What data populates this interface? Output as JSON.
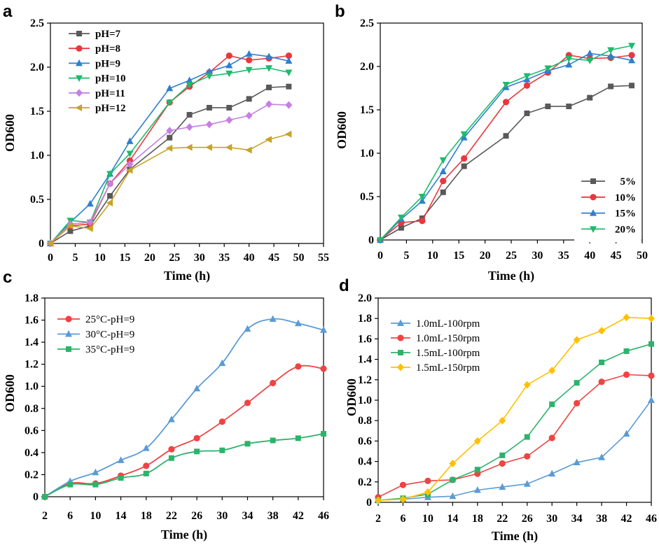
{
  "chart_data": [
    {
      "panel": "a",
      "type": "line",
      "xlabel": "Time (h)",
      "ylabel": "OD600",
      "xlim": [
        0,
        55
      ],
      "ylim": [
        0,
        2.5
      ],
      "xticks": [
        "0",
        "5",
        "10",
        "15",
        "20",
        "25",
        "30",
        "35",
        "40",
        "45",
        "50",
        "55"
      ],
      "yticks": [
        "0",
        "0.5",
        "1.0",
        "1.5",
        "2.0",
        "2.5"
      ],
      "legend_position": "top-left",
      "x": [
        0,
        4,
        8,
        12,
        16,
        24,
        28,
        32,
        36,
        40,
        44,
        48
      ],
      "series": [
        {
          "name": "pH=7",
          "color": "#595959",
          "marker": "square",
          "values": [
            0,
            0.14,
            0.2,
            0.54,
            0.84,
            1.2,
            1.46,
            1.54,
            1.54,
            1.64,
            1.77,
            1.78
          ]
        },
        {
          "name": "pH=8",
          "color": "#e8383d",
          "marker": "circle",
          "values": [
            0,
            0.2,
            0.22,
            0.68,
            0.94,
            1.6,
            1.78,
            1.94,
            2.13,
            2.08,
            2.1,
            2.13
          ]
        },
        {
          "name": "pH=9",
          "color": "#2e7fcf",
          "marker": "triangle-up",
          "values": [
            0,
            0.24,
            0.45,
            0.79,
            1.16,
            1.76,
            1.85,
            1.95,
            2.02,
            2.15,
            2.12,
            2.07
          ]
        },
        {
          "name": "pH=10",
          "color": "#1dbb6b",
          "marker": "triangle-down",
          "values": [
            0,
            0.26,
            0.24,
            0.79,
            1.02,
            1.6,
            1.8,
            1.9,
            1.93,
            1.97,
            1.99,
            1.94
          ]
        },
        {
          "name": "pH=11",
          "color": "#c77fe3",
          "marker": "diamond",
          "values": [
            0,
            0.22,
            0.24,
            0.68,
            0.9,
            1.28,
            1.32,
            1.35,
            1.4,
            1.45,
            1.58,
            1.57
          ]
        },
        {
          "name": "pH=12",
          "color": "#c9a227",
          "marker": "triangle-left",
          "values": [
            0,
            0.2,
            0.17,
            0.46,
            0.83,
            1.08,
            1.09,
            1.09,
            1.09,
            1.06,
            1.18,
            1.24
          ]
        }
      ]
    },
    {
      "panel": "b",
      "type": "line",
      "xlabel": "Time (h)",
      "ylabel": "OD600",
      "xlim": [
        0,
        50
      ],
      "ylim": [
        0,
        2.5
      ],
      "xticks": [
        "0",
        "5",
        "10",
        "15",
        "20",
        "25",
        "30",
        "35",
        "40",
        "45",
        "50"
      ],
      "yticks": [
        "0",
        "0.5",
        "1.0",
        "1.5",
        "2.0",
        "2.5"
      ],
      "legend_position": "bottom-right",
      "x": [
        0,
        4,
        8,
        12,
        16,
        24,
        28,
        32,
        36,
        40,
        44,
        48
      ],
      "series": [
        {
          "name": "5%",
          "color": "#595959",
          "marker": "square",
          "values": [
            0,
            0.14,
            0.25,
            0.55,
            0.85,
            1.2,
            1.46,
            1.54,
            1.54,
            1.64,
            1.77,
            1.78
          ]
        },
        {
          "name": "10%",
          "color": "#e8383d",
          "marker": "circle",
          "values": [
            0,
            0.2,
            0.22,
            0.68,
            0.94,
            1.59,
            1.78,
            1.93,
            2.13,
            2.09,
            2.1,
            2.13
          ]
        },
        {
          "name": "15%",
          "color": "#2e7fcf",
          "marker": "triangle-up",
          "values": [
            0,
            0.24,
            0.45,
            0.79,
            1.18,
            1.76,
            1.85,
            1.95,
            2.02,
            2.15,
            2.12,
            2.07
          ]
        },
        {
          "name": "20%",
          "color": "#1dbb6b",
          "marker": "triangle-down",
          "values": [
            0,
            0.26,
            0.5,
            0.92,
            1.22,
            1.79,
            1.89,
            1.98,
            2.09,
            2.07,
            2.19,
            2.24
          ]
        }
      ]
    },
    {
      "panel": "c",
      "type": "line",
      "xlabel": "Time (h)",
      "ylabel": "OD600",
      "xlim": [
        2,
        46
      ],
      "ylim": [
        0,
        1.8
      ],
      "xticks": [
        "2",
        "6",
        "10",
        "14",
        "18",
        "22",
        "26",
        "30",
        "34",
        "38",
        "42",
        "46"
      ],
      "yticks": [
        "0",
        "0.2",
        "0.4",
        "0.6",
        "0.8",
        "1.0",
        "1.2",
        "1.4",
        "1.6",
        "1.8"
      ],
      "legend_position": "top-left",
      "x": [
        2,
        6,
        10,
        14,
        18,
        22,
        26,
        30,
        34,
        38,
        42,
        46
      ],
      "smooth": true,
      "series": [
        {
          "name": "25°C-pH=9",
          "color": "#ee4444",
          "marker": "circle",
          "values": [
            0,
            0.12,
            0.12,
            0.19,
            0.28,
            0.43,
            0.53,
            0.68,
            0.85,
            1.03,
            1.18,
            1.16
          ]
        },
        {
          "name": "30°C-pH=9",
          "color": "#5b9bd5",
          "marker": "triangle-up",
          "values": [
            0,
            0.14,
            0.22,
            0.33,
            0.44,
            0.7,
            0.98,
            1.21,
            1.52,
            1.61,
            1.57,
            1.51
          ]
        },
        {
          "name": "35°C-pH=9",
          "color": "#2db36b",
          "marker": "square",
          "values": [
            0,
            0.11,
            0.11,
            0.17,
            0.21,
            0.35,
            0.41,
            0.42,
            0.48,
            0.51,
            0.53,
            0.57
          ]
        }
      ]
    },
    {
      "panel": "d",
      "type": "line",
      "xlabel": "Time (h)",
      "ylabel": "OD600",
      "xlim": [
        2,
        46
      ],
      "ylim": [
        0,
        2.0
      ],
      "xticks": [
        "2",
        "6",
        "10",
        "14",
        "18",
        "22",
        "26",
        "30",
        "34",
        "38",
        "42",
        "46"
      ],
      "yticks": [
        "0",
        "0.2",
        "0.4",
        "0.6",
        "0.8",
        "1.0",
        "1.2",
        "1.4",
        "1.6",
        "1.8",
        "2.0"
      ],
      "legend_position": "top-left",
      "x": [
        2,
        6,
        10,
        14,
        18,
        22,
        26,
        30,
        34,
        38,
        42,
        46
      ],
      "series": [
        {
          "name": "1.0mL-100rpm",
          "color": "#5b9bd5",
          "marker": "triangle-up",
          "values": [
            0.02,
            0.03,
            0.05,
            0.06,
            0.12,
            0.15,
            0.18,
            0.28,
            0.39,
            0.44,
            0.67,
            1.0
          ]
        },
        {
          "name": "1.0mL-150rpm",
          "color": "#ee4444",
          "marker": "circle",
          "values": [
            0.05,
            0.17,
            0.21,
            0.22,
            0.28,
            0.38,
            0.45,
            0.63,
            0.97,
            1.18,
            1.25,
            1.24
          ]
        },
        {
          "name": "1.5mL-100rpm",
          "color": "#2db36b",
          "marker": "square",
          "values": [
            0.02,
            0.04,
            0.08,
            0.22,
            0.32,
            0.46,
            0.64,
            0.96,
            1.17,
            1.37,
            1.48,
            1.55
          ]
        },
        {
          "name": "1.5mL-150rpm",
          "color": "#ffc000",
          "marker": "diamond",
          "values": [
            0.02,
            0.03,
            0.1,
            0.38,
            0.6,
            0.8,
            1.15,
            1.29,
            1.59,
            1.68,
            1.81,
            1.8
          ]
        }
      ]
    }
  ]
}
